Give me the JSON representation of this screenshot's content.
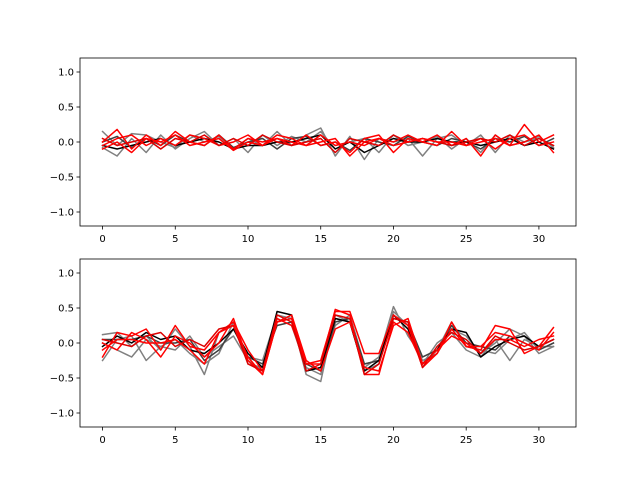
{
  "figure": {
    "background": "#ffffff"
  },
  "chart_data": [
    {
      "type": "line",
      "xlim": [
        -1.55,
        32.55
      ],
      "ylim": [
        -1.2,
        1.2
      ],
      "xticks": [
        0,
        5,
        10,
        15,
        20,
        25,
        30
      ],
      "xtick_labels": [
        "0",
        "5",
        "10",
        "15",
        "20",
        "25",
        "30"
      ],
      "yticks": [
        -1.0,
        -0.5,
        0.0,
        0.5,
        1.0
      ],
      "ytick_labels": [
        "−1.0",
        "−0.5",
        "0.0",
        "0.5",
        "1.0"
      ],
      "grid": false,
      "x": [
        0,
        1,
        2,
        3,
        4,
        5,
        6,
        7,
        8,
        9,
        10,
        11,
        12,
        13,
        14,
        15,
        16,
        17,
        18,
        19,
        20,
        21,
        22,
        23,
        24,
        25,
        26,
        27,
        28,
        29,
        30,
        31
      ],
      "series": [
        {
          "color": "#808080",
          "values": [
            0.15,
            -0.05,
            0.12,
            0.1,
            0.0,
            -0.08,
            0.1,
            0.0,
            0.08,
            -0.1,
            0.05,
            -0.05,
            0.15,
            -0.05,
            0.1,
            0.2,
            -0.2,
            0.08,
            -0.25,
            0.05,
            0.0,
            0.05,
            -0.2,
            0.05,
            0.1,
            -0.05,
            0.1,
            -0.15,
            0.1,
            0.0,
            0.05,
            -0.05
          ]
        },
        {
          "color": "#808080",
          "values": [
            -0.08,
            -0.2,
            0.05,
            -0.15,
            0.1,
            -0.1,
            0.05,
            0.15,
            -0.05,
            0.05,
            -0.15,
            0.1,
            -0.05,
            0.08,
            0.0,
            0.15,
            -0.1,
            0.0,
            0.05,
            -0.15,
            0.1,
            -0.05,
            0.0,
            0.08,
            -0.1,
            0.05,
            -0.15,
            0.1,
            -0.05,
            0.0,
            0.08,
            -0.08
          ]
        },
        {
          "color": "#404040",
          "values": [
            0.0,
            0.08,
            -0.08,
            0.05,
            -0.05,
            0.1,
            0.0,
            -0.05,
            0.1,
            -0.08,
            0.0,
            0.05,
            -0.1,
            0.05,
            0.08,
            -0.05,
            0.0,
            -0.12,
            0.05,
            0.0,
            -0.05,
            0.08,
            0.0,
            -0.05,
            0.05,
            0.0,
            -0.1,
            0.05,
            0.0,
            0.08,
            -0.05,
            0.05
          ]
        },
        {
          "color": "#000000",
          "values": [
            -0.05,
            -0.1,
            -0.05,
            0.0,
            0.05,
            -0.05,
            0.0,
            0.05,
            0.0,
            -0.1,
            -0.05,
            -0.05,
            0.0,
            0.0,
            0.05,
            0.1,
            -0.1,
            0.0,
            -0.15,
            -0.05,
            0.05,
            0.0,
            0.0,
            0.05,
            0.0,
            0.0,
            -0.05,
            0.0,
            0.05,
            -0.05,
            0.0,
            -0.1
          ]
        },
        {
          "color": "#ff0000",
          "values": [
            0.0,
            0.18,
            -0.1,
            0.1,
            -0.05,
            0.15,
            0.0,
            -0.05,
            0.1,
            -0.1,
            0.05,
            0.0,
            0.05,
            -0.05,
            0.1,
            -0.05,
            0.0,
            -0.15,
            0.05,
            0.1,
            -0.15,
            0.05,
            0.0,
            0.1,
            -0.05,
            0.05,
            -0.2,
            0.1,
            -0.05,
            0.25,
            0.0,
            0.1
          ]
        },
        {
          "color": "#ff0000",
          "values": [
            -0.05,
            0.05,
            0.1,
            -0.05,
            0.05,
            -0.05,
            0.1,
            0.05,
            -0.05,
            0.0,
            0.1,
            -0.05,
            0.05,
            0.0,
            -0.05,
            0.1,
            -0.05,
            0.0,
            -0.05,
            0.05,
            0.0,
            0.1,
            0.0,
            -0.05,
            0.15,
            -0.05,
            0.05,
            -0.1,
            0.05,
            0.1,
            -0.05,
            0.0
          ]
        },
        {
          "color": "#dd0000",
          "values": [
            0.05,
            -0.05,
            0.0,
            0.05,
            -0.1,
            0.05,
            0.0,
            0.1,
            -0.05,
            0.05,
            -0.05,
            0.1,
            0.0,
            -0.05,
            0.0,
            0.05,
            -0.15,
            0.05,
            0.0,
            -0.05,
            0.1,
            0.0,
            0.05,
            0.0,
            -0.05,
            0.0,
            0.05,
            0.0,
            0.1,
            -0.05,
            0.05,
            -0.05
          ]
        },
        {
          "color": "#ff0000",
          "values": [
            -0.1,
            0.0,
            -0.15,
            0.05,
            0.0,
            0.1,
            -0.05,
            0.0,
            0.05,
            -0.12,
            0.0,
            -0.05,
            0.1,
            0.05,
            -0.05,
            0.0,
            0.05,
            -0.2,
            0.0,
            0.05,
            -0.05,
            0.0,
            0.05,
            0.0,
            0.0,
            -0.05,
            0.0,
            0.05,
            -0.05,
            0.0,
            0.1,
            -0.15
          ]
        }
      ]
    },
    {
      "type": "line",
      "xlim": [
        -1.55,
        32.55
      ],
      "ylim": [
        -1.2,
        1.2
      ],
      "xticks": [
        0,
        5,
        10,
        15,
        20,
        25,
        30
      ],
      "xtick_labels": [
        "0",
        "5",
        "10",
        "15",
        "20",
        "25",
        "30"
      ],
      "yticks": [
        -1.0,
        -0.5,
        0.0,
        0.5,
        1.0
      ],
      "ytick_labels": [
        "−1.0",
        "−0.5",
        "0.0",
        "0.5",
        "1.0"
      ],
      "grid": false,
      "x": [
        0,
        1,
        2,
        3,
        4,
        5,
        6,
        7,
        8,
        9,
        10,
        11,
        12,
        13,
        14,
        15,
        16,
        17,
        18,
        19,
        20,
        21,
        22,
        23,
        24,
        25,
        26,
        27,
        28,
        29,
        30,
        31
      ],
      "series": [
        {
          "color": "#808080",
          "values": [
            0.12,
            0.15,
            -0.05,
            0.1,
            -0.1,
            0.2,
            -0.05,
            -0.45,
            0.15,
            0.25,
            -0.2,
            -0.25,
            0.4,
            0.35,
            -0.45,
            -0.55,
            0.4,
            0.3,
            -0.35,
            -0.2,
            0.52,
            0.1,
            -0.2,
            -0.1,
            0.3,
            -0.05,
            -0.1,
            -0.15,
            0.05,
            0.15,
            -0.1,
            0.0
          ]
        },
        {
          "color": "#808080",
          "values": [
            -0.25,
            0.05,
            0.1,
            -0.25,
            -0.05,
            0.05,
            -0.15,
            -0.3,
            -0.15,
            0.3,
            -0.3,
            -0.35,
            0.35,
            0.25,
            -0.35,
            -0.45,
            0.35,
            0.3,
            -0.4,
            -0.3,
            0.45,
            0.25,
            -0.3,
            0.0,
            0.15,
            -0.1,
            -0.2,
            0.05,
            -0.25,
            0.05,
            -0.05,
            -0.05
          ]
        },
        {
          "color": "#808080",
          "values": [
            0.0,
            -0.1,
            -0.2,
            0.05,
            -0.05,
            -0.1,
            0.1,
            -0.2,
            -0.05,
            0.1,
            -0.25,
            -0.4,
            0.3,
            0.4,
            -0.4,
            -0.35,
            0.25,
            0.4,
            -0.3,
            -0.25,
            0.4,
            0.2,
            -0.25,
            -0.15,
            0.2,
            0.1,
            -0.15,
            0.0,
            0.2,
            0.1,
            -0.15,
            -0.05
          ]
        },
        {
          "color": "#404040",
          "values": [
            0.05,
            0.05,
            0.05,
            0.1,
            0.0,
            0.0,
            0.05,
            -0.25,
            -0.1,
            0.2,
            -0.2,
            -0.3,
            0.25,
            0.3,
            -0.3,
            -0.4,
            0.3,
            0.35,
            -0.3,
            -0.25,
            0.35,
            0.3,
            -0.2,
            -0.1,
            0.25,
            0.0,
            -0.05,
            -0.1,
            0.1,
            0.0,
            -0.1,
            0.0
          ]
        },
        {
          "color": "#000000",
          "values": [
            -0.05,
            0.1,
            0.0,
            0.15,
            0.05,
            0.1,
            -0.1,
            -0.15,
            0.0,
            0.2,
            -0.15,
            -0.35,
            0.45,
            0.4,
            -0.4,
            -0.35,
            0.35,
            0.3,
            -0.4,
            -0.25,
            0.4,
            0.2,
            -0.3,
            -0.1,
            0.2,
            0.15,
            -0.2,
            -0.05,
            0.05,
            0.1,
            -0.05,
            0.05
          ]
        },
        {
          "color": "#ff0000",
          "values": [
            -0.2,
            0.15,
            0.1,
            0.2,
            -0.1,
            0.25,
            -0.05,
            -0.1,
            0.15,
            0.3,
            -0.1,
            -0.4,
            0.35,
            0.25,
            -0.3,
            -0.25,
            0.45,
            0.45,
            -0.15,
            -0.15,
            0.4,
            0.25,
            -0.35,
            -0.15,
            0.3,
            -0.05,
            -0.1,
            0.25,
            0.2,
            -0.15,
            -0.05,
            0.22
          ]
        },
        {
          "color": "#ff0000",
          "values": [
            0.0,
            -0.1,
            0.15,
            0.05,
            -0.2,
            0.1,
            0.0,
            -0.2,
            0.0,
            0.35,
            -0.25,
            -0.45,
            0.3,
            0.35,
            -0.3,
            -0.3,
            0.48,
            0.4,
            -0.45,
            -0.45,
            0.3,
            0.15,
            -0.3,
            -0.1,
            0.1,
            0.0,
            -0.15,
            0.05,
            0.05,
            -0.05,
            0.05,
            0.1
          ]
        },
        {
          "color": "#dd0000",
          "values": [
            0.05,
            0.0,
            -0.05,
            0.1,
            0.15,
            -0.05,
            0.05,
            -0.05,
            0.2,
            0.25,
            -0.3,
            -0.4,
            0.4,
            0.3,
            -0.4,
            -0.3,
            0.4,
            0.35,
            -0.45,
            -0.3,
            0.35,
            0.3,
            -0.35,
            -0.05,
            0.15,
            0.05,
            -0.15,
            0.1,
            0.0,
            -0.1,
            -0.05,
            0.05
          ]
        },
        {
          "color": "#ff0000",
          "values": [
            -0.1,
            0.05,
            0.05,
            0.0,
            0.0,
            0.05,
            -0.1,
            -0.3,
            0.15,
            0.25,
            -0.2,
            -0.45,
            0.3,
            0.4,
            -0.25,
            -0.4,
            0.2,
            0.3,
            -0.35,
            -0.4,
            0.25,
            0.35,
            -0.3,
            -0.15,
            0.2,
            -0.05,
            -0.05,
            0.15,
            0.1,
            0.0,
            -0.1,
            0.15
          ]
        }
      ]
    }
  ]
}
